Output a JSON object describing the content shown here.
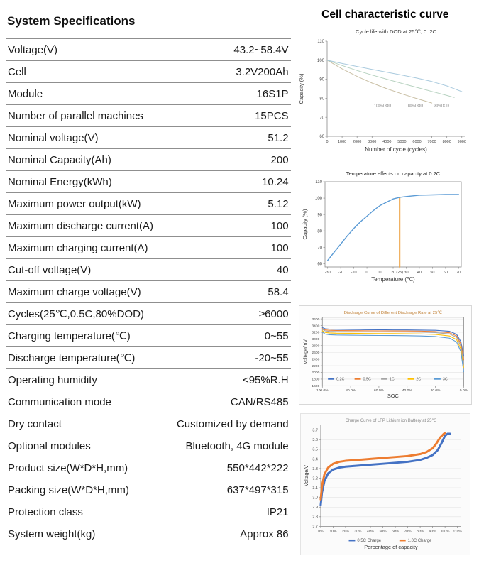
{
  "left": {
    "title": "System Specifications",
    "rows": [
      {
        "label": "Voltage(V)",
        "value": "43.2~58.4V"
      },
      {
        "label": "Cell",
        "value": "3.2V200Ah"
      },
      {
        "label": "Module",
        "value": "16S1P"
      },
      {
        "label": "Number of parallel machines",
        "value": "15PCS"
      },
      {
        "label": "Nominal voltage(V)",
        "value": "51.2"
      },
      {
        "label": "Nominal Capacity(Ah)",
        "value": "200"
      },
      {
        "label": "Nominal Energy(kWh)",
        "value": "10.24"
      },
      {
        "label": "Maximum power output(kW)",
        "value": "5.12"
      },
      {
        "label": "Maximum discharge current(A)",
        "value": "100"
      },
      {
        "label": "Maximum charging current(A)",
        "value": "100"
      },
      {
        "label": "Cut-off voltage(V)",
        "value": "40"
      },
      {
        "label": "Maximum charge voltage(V)",
        "value": "58.4"
      },
      {
        "label": "Cycles(25℃,0.5C,80%DOD)",
        "value": "≥6000"
      },
      {
        "label": "Charging temperature(℃)",
        "value": "0~55"
      },
      {
        "label": "Discharge temperature(℃)",
        "value": "-20~55"
      },
      {
        "label": "Operating humidity",
        "value": "<95%R.H"
      },
      {
        "label": "Communication mode",
        "value": "CAN/RS485"
      },
      {
        "label": "Dry contact",
        "value": "Customized by demand"
      },
      {
        "label": "Optional modules",
        "value": "Bluetooth, 4G module"
      },
      {
        "label": "Product size(W*D*H,mm)",
        "value": "550*442*222"
      },
      {
        "label": "Packing size(W*D*H,mm)",
        "value": "637*497*315"
      },
      {
        "label": "Protection class",
        "value": "IP21"
      },
      {
        "label": "System  weight(kg)",
        "value": "Approx 86"
      }
    ]
  },
  "right": {
    "title": "Cell characteristic curve"
  },
  "chart_data": [
    {
      "type": "line",
      "title": "Cycle life with DOD at 25℃, 0. 2C",
      "title_color": "#333333",
      "xlabel": "Number of cycle (cycles)",
      "ylabel": "Capacity (%)",
      "xlim": [
        0,
        9200
      ],
      "ylim": [
        60,
        110
      ],
      "xticks": [
        0,
        1000,
        2000,
        3000,
        4000,
        5000,
        6000,
        7000,
        8000,
        9000
      ],
      "xtick_labels": [
        "0",
        "1000",
        "2000",
        "3000",
        "4000",
        "5000",
        "6000",
        "7000",
        "8000",
        "9000"
      ],
      "yticks": [
        60,
        70,
        80,
        90,
        100,
        110
      ],
      "series": [
        {
          "name": "100%DOD",
          "color": "#c9bfa4",
          "width": 1,
          "x": [
            0,
            1000,
            2000,
            3000,
            4000,
            5000,
            6000,
            7000
          ],
          "y": [
            100,
            95.5,
            91.5,
            88,
            85,
            82.3,
            79.8,
            77.5
          ]
        },
        {
          "name": "80%DOD",
          "color": "#b7d2c0",
          "width": 1,
          "x": [
            0,
            1000,
            2000,
            3000,
            4000,
            5000,
            6000,
            7000,
            8000,
            8500
          ],
          "y": [
            100,
            97.2,
            94.6,
            92.2,
            90,
            87.8,
            85.7,
            83.6,
            81.5,
            80.4
          ]
        },
        {
          "name": "30%DOD",
          "color": "#a9cade",
          "width": 1,
          "x": [
            0,
            1000,
            2000,
            3000,
            4000,
            5000,
            6000,
            7000,
            8000,
            9000
          ],
          "y": [
            100,
            98.3,
            96.7,
            95.2,
            93.7,
            92.2,
            90.6,
            88.8,
            86.5,
            83.5
          ]
        }
      ],
      "annotations": [
        {
          "x": 3700,
          "y": 75.5,
          "text": "100%DOD"
        },
        {
          "x": 5900,
          "y": 75.5,
          "text": "80%DOD"
        },
        {
          "x": 7650,
          "y": 75.5,
          "text": "30%DOD"
        }
      ]
    },
    {
      "type": "line",
      "title": "Temperature effects on capacity at  0.2C",
      "title_color": "#222222",
      "xlabel": "Temperature (℃)",
      "ylabel": "Capacity (%)",
      "xlim": [
        -32,
        72
      ],
      "ylim": [
        58,
        110
      ],
      "xticks": [
        -30,
        -20,
        -10,
        0,
        10,
        20,
        25,
        30,
        40,
        50,
        60,
        70
      ],
      "xtick_labels": [
        "-30",
        "-20",
        "-10",
        "0",
        "10",
        "20",
        "(25)",
        "30",
        "40",
        "50",
        "60",
        "70"
      ],
      "yticks": [
        60,
        70,
        80,
        90,
        100,
        110
      ],
      "series": [
        {
          "name": null,
          "color": "#ed9f3c",
          "width": 2,
          "x": [
            25,
            25
          ],
          "y": [
            58,
            100.5
          ]
        },
        {
          "name": "capacity",
          "color": "#5b9bd5",
          "width": 1.4,
          "x": [
            -30,
            -25,
            -20,
            -15,
            -10,
            -5,
            0,
            5,
            10,
            15,
            20,
            25,
            30,
            40,
            50,
            60,
            70
          ],
          "y": [
            62,
            67,
            72,
            77,
            81.5,
            85.5,
            89,
            92.5,
            95.5,
            97.5,
            99.5,
            100.5,
            101,
            101.8,
            102,
            102.2,
            102.2
          ]
        }
      ],
      "annotations": []
    },
    {
      "type": "line",
      "title": "Discharge Curve of Different Discharge Rate at 25℃",
      "title_color": "#c2833a",
      "xlabel": "SOC",
      "ylabel": "voltage/mV",
      "xlim": [
        100,
        0
      ],
      "ylim": [
        1600,
        3650
      ],
      "xticks": [
        100,
        80,
        60,
        40,
        20,
        0
      ],
      "xtick_labels": [
        "100.0%",
        "80.0%",
        "60.0%",
        "40.0%",
        "20.0%",
        "0.0%"
      ],
      "yticks": [
        1600,
        1800,
        2000,
        2200,
        2400,
        2600,
        2800,
        3000,
        3200,
        3400,
        3600
      ],
      "ytick_labels": [
        "1600",
        "1800",
        "2000",
        "2200",
        "2400",
        "2600",
        "2800",
        "3000",
        "3200",
        "3400",
        "3600"
      ],
      "series": [
        {
          "name": "0.2C",
          "color": "#4472c4",
          "width": 1.1,
          "x": [
            100,
            98,
            95,
            90,
            80,
            70,
            60,
            50,
            40,
            30,
            20,
            10,
            5,
            2,
            0
          ],
          "y": [
            3340,
            3305,
            3295,
            3288,
            3282,
            3278,
            3275,
            3272,
            3270,
            3266,
            3258,
            3230,
            3140,
            2920,
            2500
          ]
        },
        {
          "name": "0.5C",
          "color": "#ed7d31",
          "width": 1.1,
          "x": [
            100,
            98,
            95,
            90,
            80,
            70,
            60,
            50,
            40,
            30,
            20,
            10,
            5,
            2,
            0
          ],
          "y": [
            3310,
            3272,
            3258,
            3252,
            3248,
            3245,
            3243,
            3241,
            3238,
            3233,
            3222,
            3185,
            3090,
            2850,
            2380
          ]
        },
        {
          "name": "1C",
          "color": "#a5a5a5",
          "width": 1.1,
          "x": [
            100,
            98,
            95,
            90,
            80,
            70,
            60,
            50,
            40,
            30,
            20,
            10,
            5,
            2,
            0
          ],
          "y": [
            3285,
            3242,
            3228,
            3222,
            3218,
            3215,
            3213,
            3211,
            3208,
            3202,
            3190,
            3150,
            3050,
            2780,
            2260
          ]
        },
        {
          "name": "2C",
          "color": "#ffc000",
          "width": 1.1,
          "x": [
            100,
            98,
            95,
            90,
            80,
            70,
            60,
            50,
            40,
            30,
            20,
            10,
            5,
            2,
            0
          ],
          "y": [
            3245,
            3195,
            3180,
            3172,
            3168,
            3165,
            3163,
            3160,
            3156,
            3150,
            3135,
            3090,
            2980,
            2700,
            2140
          ]
        },
        {
          "name": "3C",
          "color": "#5b9bd5",
          "width": 1.1,
          "x": [
            100,
            98,
            95,
            90,
            80,
            70,
            60,
            50,
            40,
            30,
            20,
            10,
            5,
            2,
            0
          ],
          "y": [
            3205,
            3148,
            3128,
            3118,
            3112,
            3108,
            3105,
            3102,
            3098,
            3090,
            3072,
            3025,
            2910,
            2620,
            2020
          ]
        }
      ],
      "annotations": []
    },
    {
      "type": "line",
      "title": "Charge Curve of LFP Lithium ion Battery at 25℃",
      "title_color": "#888888",
      "xlabel": "Percentage of capacity",
      "ylabel": "Voltage/V",
      "xlim": [
        0,
        113
      ],
      "ylim": [
        2.7,
        3.75
      ],
      "xticks": [
        0,
        10,
        20,
        30,
        40,
        50,
        60,
        70,
        80,
        90,
        100,
        110
      ],
      "xtick_labels": [
        "0%",
        "10%",
        "20%",
        "30%",
        "40%",
        "50%",
        "60%",
        "70%",
        "80%",
        "90%",
        "100%",
        "110%"
      ],
      "yticks": [
        2.7,
        2.8,
        2.9,
        3.0,
        3.1,
        3.2,
        3.3,
        3.4,
        3.5,
        3.6,
        3.7
      ],
      "ytick_labels": [
        "2.7",
        "2.8",
        "2.9",
        "3.0",
        "3.1",
        "3.2",
        "3.3",
        "3.4",
        "3.5",
        "3.6",
        "3.7"
      ],
      "series": [
        {
          "name": "0.5C Charge",
          "color": "#4472c4",
          "width": 3,
          "x": [
            0,
            1,
            3,
            6,
            10,
            15,
            20,
            30,
            40,
            50,
            60,
            70,
            80,
            85,
            90,
            94,
            97,
            100,
            102,
            104
          ],
          "y": [
            2.92,
            3.05,
            3.17,
            3.25,
            3.29,
            3.31,
            3.32,
            3.33,
            3.34,
            3.35,
            3.36,
            3.37,
            3.39,
            3.41,
            3.44,
            3.49,
            3.56,
            3.64,
            3.66,
            3.66
          ]
        },
        {
          "name": "1.0C Charge",
          "color": "#ed7d31",
          "width": 3,
          "x": [
            0,
            1,
            3,
            6,
            10,
            15,
            20,
            30,
            40,
            50,
            60,
            70,
            80,
            85,
            90,
            93,
            96,
            99,
            100
          ],
          "y": [
            2.98,
            3.12,
            3.24,
            3.31,
            3.35,
            3.37,
            3.38,
            3.39,
            3.4,
            3.41,
            3.42,
            3.43,
            3.45,
            3.47,
            3.51,
            3.56,
            3.62,
            3.66,
            3.67
          ]
        }
      ],
      "annotations": []
    }
  ]
}
